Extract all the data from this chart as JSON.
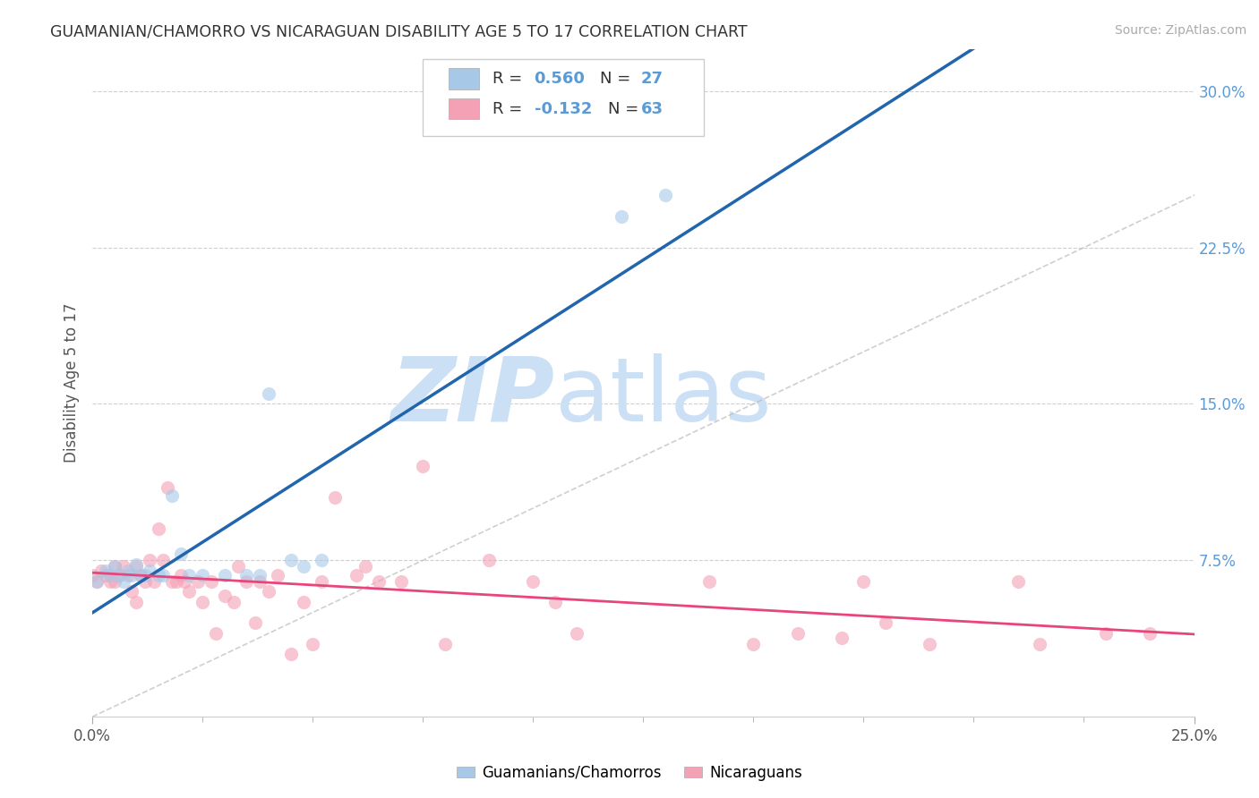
{
  "title": "GUAMANIAN/CHAMORRO VS NICARAGUAN DISABILITY AGE 5 TO 17 CORRELATION CHART",
  "source": "Source: ZipAtlas.com",
  "ylabel": "Disability Age 5 to 17",
  "xlim": [
    0,
    0.25
  ],
  "ylim": [
    0,
    0.32
  ],
  "xtick_positions": [
    0.0,
    0.25
  ],
  "xtick_labels": [
    "0.0%",
    "25.0%"
  ],
  "right_yticks": [
    0.075,
    0.15,
    0.225,
    0.3
  ],
  "right_ytick_labels": [
    "7.5%",
    "15.0%",
    "22.5%",
    "30.0%"
  ],
  "color_blue": "#a8c8e8",
  "color_pink": "#f4a0b5",
  "trendline_blue": "#2166ac",
  "trendline_pink": "#e8457a",
  "color_right_axis": "#5b9bd5",
  "scatter_alpha": 0.6,
  "scatter_size": 120,
  "blue_x": [
    0.001,
    0.003,
    0.004,
    0.005,
    0.006,
    0.007,
    0.008,
    0.009,
    0.01,
    0.011,
    0.012,
    0.013,
    0.015,
    0.016,
    0.018,
    0.02,
    0.022,
    0.025,
    0.03,
    0.035,
    0.038,
    0.04,
    0.045,
    0.048,
    0.052,
    0.12,
    0.13
  ],
  "blue_y": [
    0.065,
    0.07,
    0.068,
    0.072,
    0.068,
    0.065,
    0.07,
    0.068,
    0.073,
    0.068,
    0.068,
    0.07,
    0.068,
    0.068,
    0.106,
    0.078,
    0.068,
    0.068,
    0.068,
    0.068,
    0.068,
    0.155,
    0.075,
    0.072,
    0.075,
    0.24,
    0.25
  ],
  "pink_x": [
    0.0,
    0.001,
    0.002,
    0.003,
    0.004,
    0.005,
    0.005,
    0.006,
    0.007,
    0.008,
    0.009,
    0.01,
    0.01,
    0.011,
    0.012,
    0.013,
    0.014,
    0.015,
    0.016,
    0.017,
    0.018,
    0.019,
    0.02,
    0.021,
    0.022,
    0.024,
    0.025,
    0.027,
    0.028,
    0.03,
    0.032,
    0.033,
    0.035,
    0.037,
    0.038,
    0.04,
    0.042,
    0.045,
    0.048,
    0.05,
    0.052,
    0.055,
    0.06,
    0.062,
    0.065,
    0.07,
    0.075,
    0.08,
    0.09,
    0.1,
    0.105,
    0.11,
    0.14,
    0.15,
    0.16,
    0.17,
    0.175,
    0.18,
    0.19,
    0.21,
    0.215,
    0.23,
    0.24
  ],
  "pink_y": [
    0.068,
    0.065,
    0.07,
    0.068,
    0.065,
    0.072,
    0.065,
    0.068,
    0.072,
    0.068,
    0.06,
    0.055,
    0.072,
    0.068,
    0.065,
    0.075,
    0.065,
    0.09,
    0.075,
    0.11,
    0.065,
    0.065,
    0.068,
    0.065,
    0.06,
    0.065,
    0.055,
    0.065,
    0.04,
    0.058,
    0.055,
    0.072,
    0.065,
    0.045,
    0.065,
    0.06,
    0.068,
    0.03,
    0.055,
    0.035,
    0.065,
    0.105,
    0.068,
    0.072,
    0.065,
    0.065,
    0.12,
    0.035,
    0.075,
    0.065,
    0.055,
    0.04,
    0.065,
    0.035,
    0.04,
    0.038,
    0.065,
    0.045,
    0.035,
    0.065,
    0.035,
    0.04,
    0.04
  ],
  "background_color": "#ffffff",
  "grid_color": "#d0d0d0",
  "watermark_text": "ZIP",
  "watermark_text2": "atlas",
  "watermark_color": "#cce0f5",
  "watermark_fontsize": 72,
  "diag_line_color": "#bbbbbb"
}
